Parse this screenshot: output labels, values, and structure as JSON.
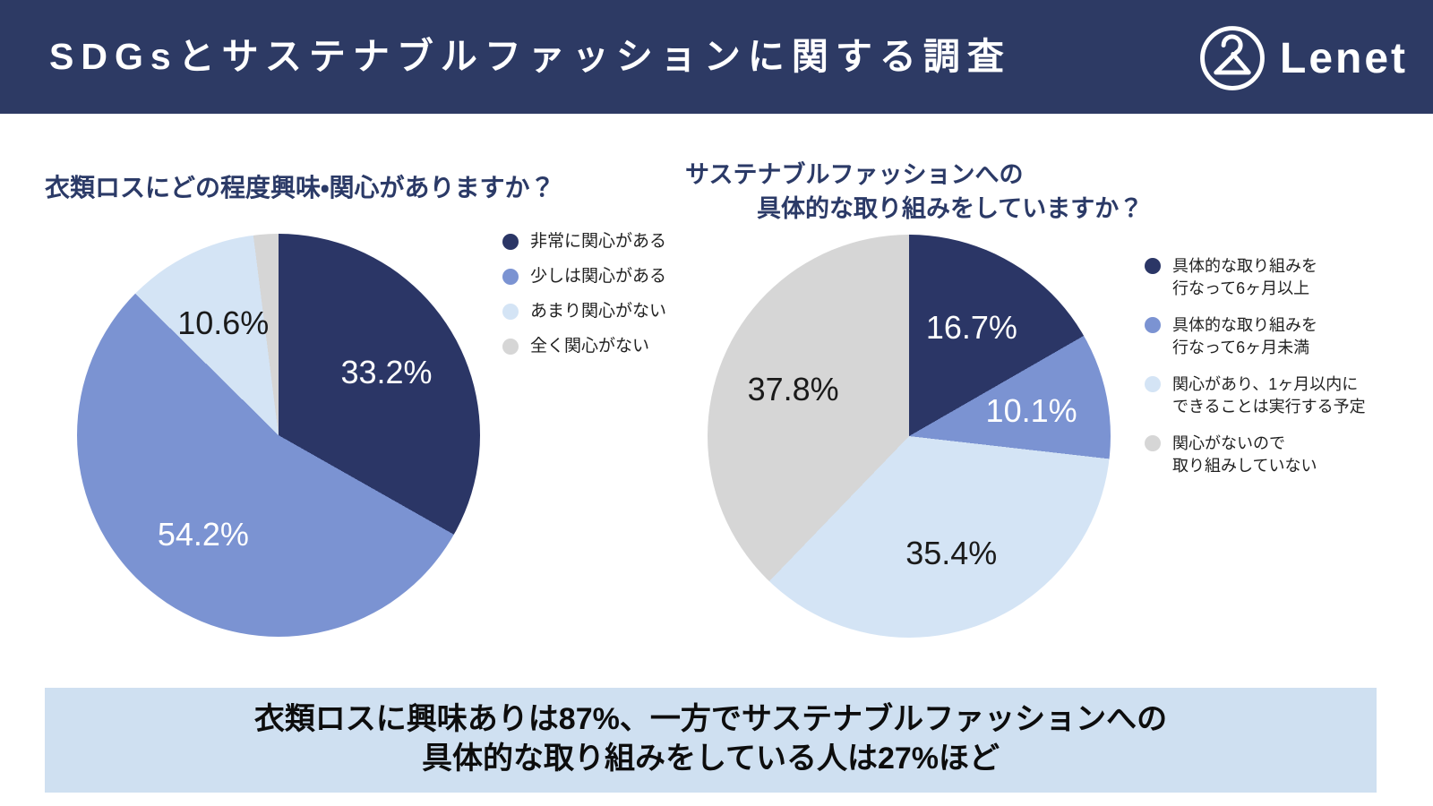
{
  "header": {
    "title": "SDGsとサステナブルファッションに関する調査",
    "logo_text": "Lenet"
  },
  "colors": {
    "header_bg": "#2d3a64",
    "title_navy": "#2b3a67",
    "banner_bg": "#cfe0f1",
    "slice_navy": "#2b3666",
    "slice_blue": "#7b93d2",
    "slice_pale_blue": "#d4e4f5",
    "slice_gray": "#d6d6d6"
  },
  "chart_data": [
    {
      "type": "pie",
      "title": "衣類ロスにどの程度興味・関心がありますか？",
      "categories": [
        "非常に関心がある",
        "少しは関心がある",
        "あまり関心がない",
        "全く関心がない"
      ],
      "values": [
        33.2,
        54.2,
        10.6,
        2.0
      ],
      "slice_labels": [
        "33.2%",
        "54.2%",
        "10.6%",
        ""
      ],
      "colors": [
        "#2b3666",
        "#7b93d2",
        "#d4e4f5",
        "#d6d6d6"
      ],
      "label_colors": [
        "#ffffff",
        "#ffffff",
        "#1a1a1a",
        "#1a1a1a"
      ],
      "start_angle": 0,
      "legend_position": "right"
    },
    {
      "type": "pie",
      "title_line1": "サステナブルファッションへの",
      "title_line2": "具体的な取り組みをしていますか？",
      "categories": [
        "具体的な取り組みを行なって6ヶ月以上",
        "具体的な取り組みを行なって6ヶ月未満",
        "関心があり、1ヶ月以内にできることは実行する予定",
        "関心がないので取り組みしていない"
      ],
      "legend_labels": [
        "具体的な取り組みを\n行なって6ヶ月以上",
        "具体的な取り組みを\n行なって6ヶ月未満",
        "関心があり、1ヶ月以内に\nできることは実行する予定",
        "関心がないので\n取り組みしていない"
      ],
      "values": [
        16.7,
        10.1,
        35.4,
        37.8
      ],
      "slice_labels": [
        "16.7%",
        "10.1%",
        "35.4%",
        "37.8%"
      ],
      "colors": [
        "#2b3666",
        "#7b93d2",
        "#d4e4f5",
        "#d6d6d6"
      ],
      "label_colors": [
        "#ffffff",
        "#ffffff",
        "#1a1a1a",
        "#1a1a1a"
      ],
      "start_angle": 0,
      "legend_position": "right"
    }
  ],
  "banner": {
    "line1": "衣類ロスに興味ありは87%、一方でサステナブルファッションへの",
    "line2": "具体的な取り組みをしている人は27%ほど"
  }
}
